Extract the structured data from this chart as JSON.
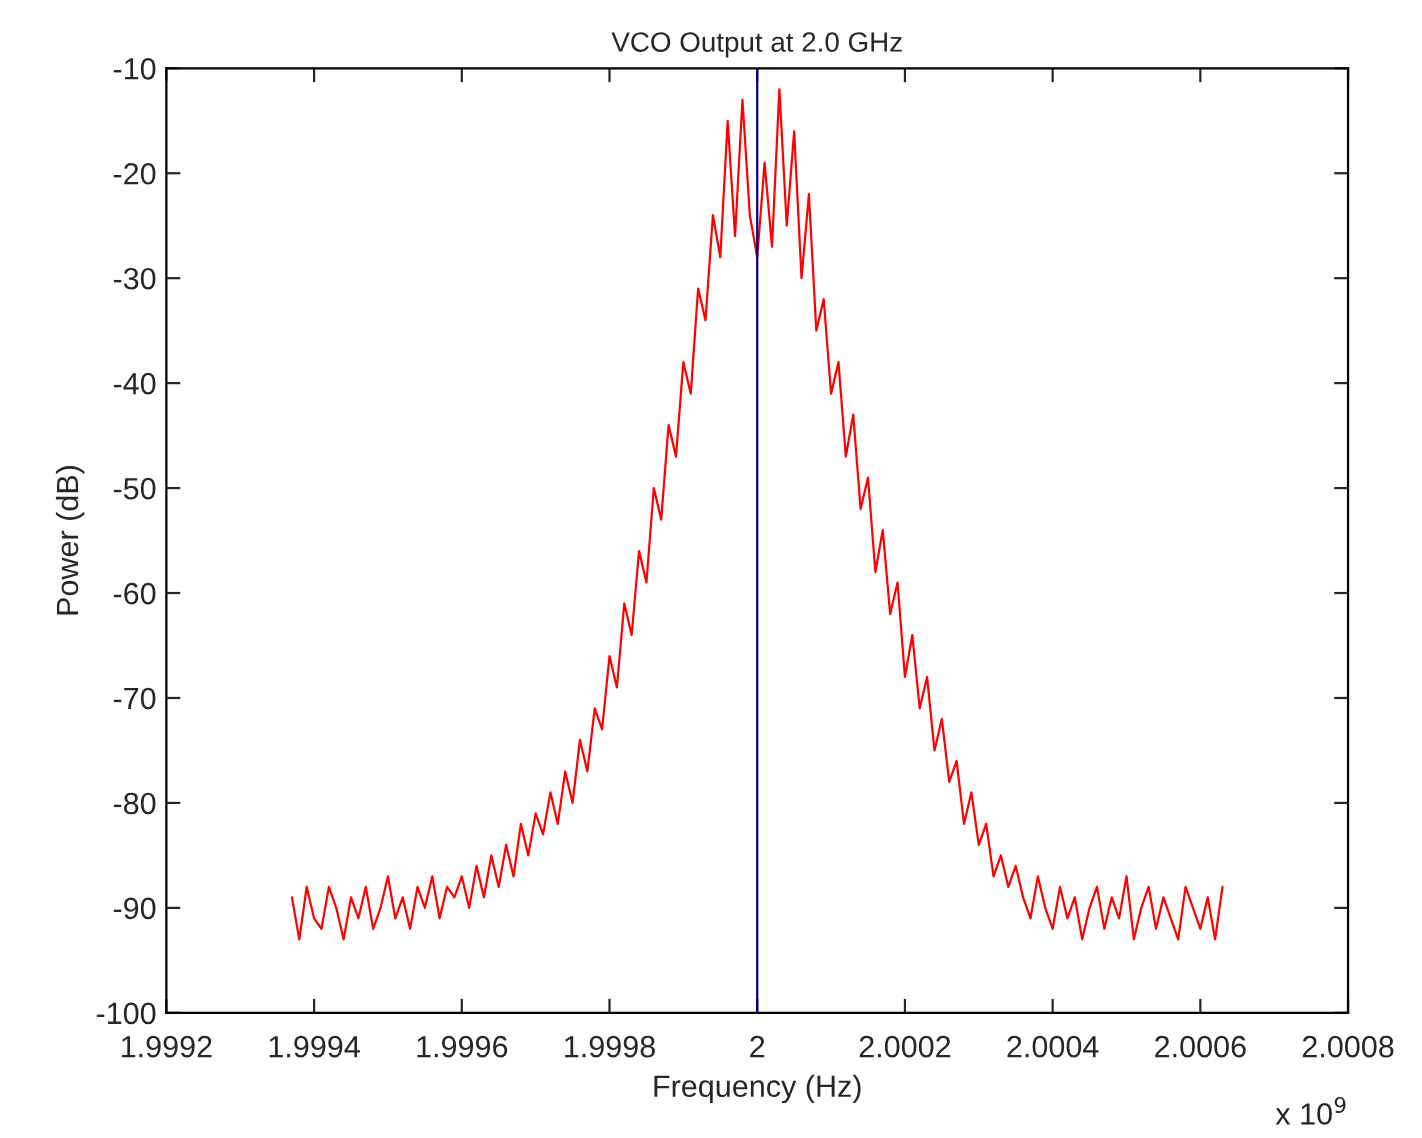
{
  "chart_data": {
    "type": "line",
    "title": "VCO Output at 2.0 GHz",
    "xlabel": "Frequency (Hz)",
    "ylabel": "Power (dB)",
    "annotations": [
      "x 10$^{9}$"
    ],
    "x": [
      1.99937,
      1.99938,
      1.99939,
      1.9994,
      1.99941,
      1.99942,
      1.99943,
      1.99944,
      1.99945,
      1.99946,
      1.99947,
      1.99948,
      1.99949,
      1.9995,
      1.99951,
      1.99952,
      1.99953,
      1.99954,
      1.99955,
      1.99956,
      1.99957,
      1.99958,
      1.99959,
      1.9996,
      1.99961,
      1.99962,
      1.99963,
      1.99964,
      1.99965,
      1.99966,
      1.99967,
      1.99968,
      1.99969,
      1.9997,
      1.99971,
      1.99972,
      1.99973,
      1.99974,
      1.99975,
      1.99976,
      1.99977,
      1.99978,
      1.99979,
      1.9998,
      1.99981,
      1.99982,
      1.99983,
      1.99984,
      1.99985,
      1.99986,
      1.99987,
      1.99988,
      1.99989,
      1.9999,
      1.99991,
      1.99992,
      1.99993,
      1.99994,
      1.99995,
      1.99996,
      1.99997,
      1.99998,
      1.99999,
      2.0,
      2.00001,
      2.00002,
      2.00003,
      2.00004,
      2.00005,
      2.00006,
      2.00007,
      2.00008,
      2.00009,
      2.0001,
      2.00011,
      2.00012,
      2.00013,
      2.00014,
      2.00015,
      2.00016,
      2.00017,
      2.00018,
      2.00019,
      2.0002,
      2.00021,
      2.00022,
      2.00023,
      2.00024,
      2.00025,
      2.00026,
      2.00027,
      2.00028,
      2.00029,
      2.0003,
      2.00031,
      2.00032,
      2.00033,
      2.00034,
      2.00035,
      2.00036,
      2.00037,
      2.00038,
      2.00039,
      2.0004,
      2.00041,
      2.00042,
      2.00043,
      2.00044,
      2.00045,
      2.00046,
      2.00047,
      2.00048,
      2.00049,
      2.0005,
      2.00051,
      2.00052,
      2.00053,
      2.00054,
      2.00055,
      2.00056,
      2.00057,
      2.00058,
      2.00059,
      2.0006,
      2.00061,
      2.00062,
      2.00063
    ],
    "series": [
      {
        "color": "#ff0000",
        "values": [
          -89,
          -93,
          -88,
          -91,
          -92,
          -88,
          -90,
          -93,
          -89,
          -91,
          -88,
          -92,
          -90,
          -87,
          -91,
          -89,
          -92,
          -88,
          -90,
          -87,
          -91,
          -88,
          -89,
          -87,
          -90,
          -86,
          -89,
          -85,
          -88,
          -84,
          -87,
          -82,
          -85,
          -81,
          -83,
          -79,
          -82,
          -77,
          -80,
          -74,
          -77,
          -71,
          -73,
          -66,
          -69,
          -61,
          -64,
          -56,
          -59,
          -50,
          -53,
          -44,
          -47,
          -38,
          -41,
          -31,
          -34,
          -24,
          -28,
          -15,
          -26,
          -13,
          -24,
          -28,
          -19,
          -27,
          -12,
          -25,
          -16,
          -30,
          -22,
          -35,
          -32,
          -41,
          -38,
          -47,
          -43,
          -52,
          -49,
          -58,
          -54,
          -62,
          -59,
          -68,
          -64,
          -71,
          -68,
          -75,
          -72,
          -78,
          -76,
          -82,
          -79,
          -84,
          -82,
          -87,
          -85,
          -88,
          -86,
          -89,
          -91,
          -87,
          -90,
          -92,
          -88,
          -91,
          -89,
          -93,
          -90,
          -88,
          -92,
          -89,
          -91,
          -87,
          -93,
          -90,
          -88,
          -92,
          -89,
          -91,
          -93,
          -88,
          -90,
          -92,
          -89,
          -93,
          -88
        ]
      }
    ],
    "ref_lines": [
      {
        "axis": "x",
        "value": 2,
        "color": "#000080"
      }
    ],
    "xlim": [
      1.9992,
      2.0008
    ],
    "xticks": [
      1.9992,
      1.9994,
      1.9996,
      1.9998,
      2,
      2.0002,
      2.0004,
      2.0006,
      2.0008
    ],
    "ylim": [
      -100,
      -10
    ],
    "yticks": [
      -100,
      -90,
      -80,
      -70,
      -60,
      -50,
      -40,
      -30,
      -20,
      -10
    ],
    "grid": false,
    "legend": false,
    "marker": "none",
    "line_style": "solid"
  }
}
